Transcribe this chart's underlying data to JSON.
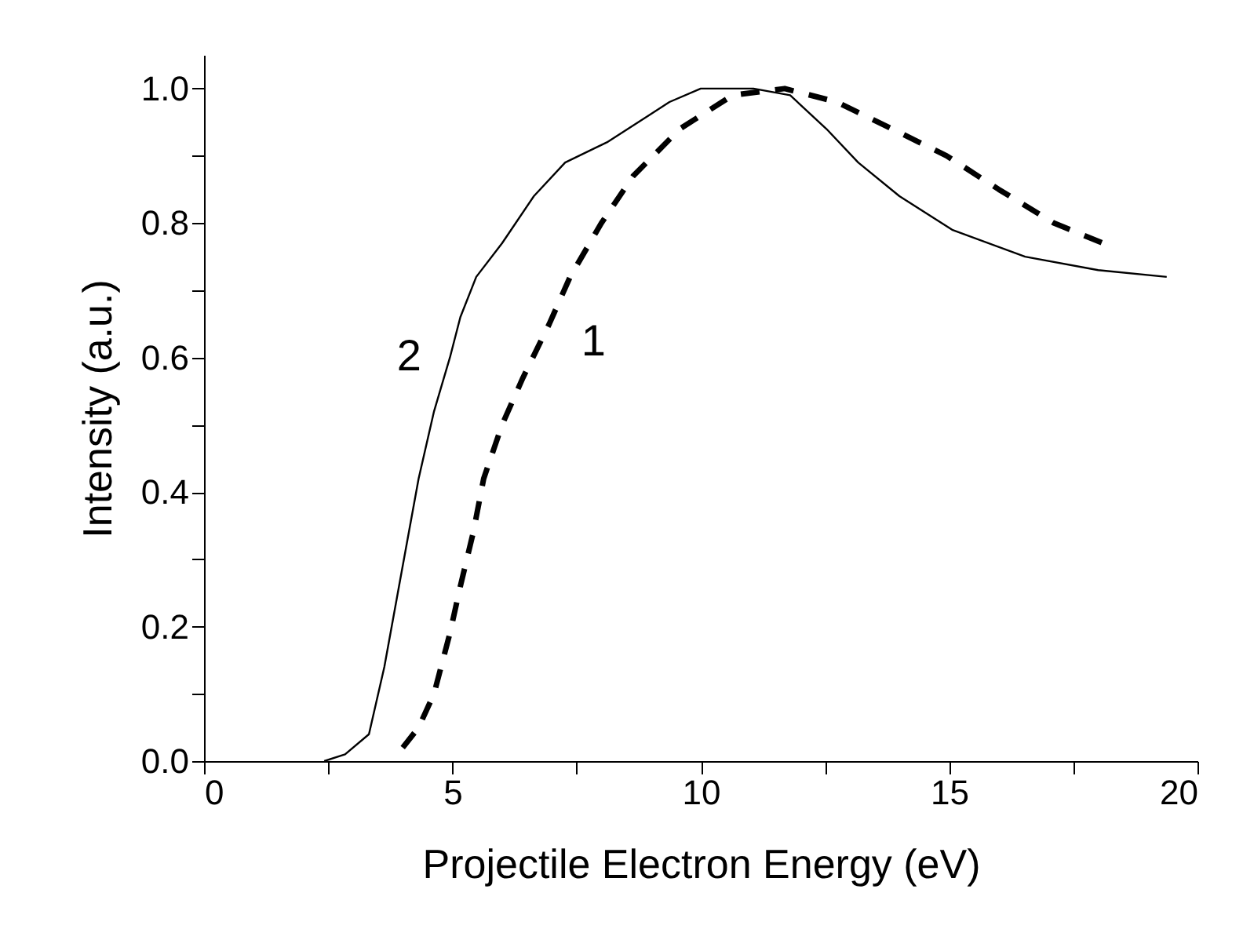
{
  "chart_data": {
    "type": "line",
    "xlabel": "Projectile Electron Energy (eV)",
    "ylabel": "Intensity (a.u.)",
    "xlim": [
      0,
      20
    ],
    "ylim": [
      0,
      1.05
    ],
    "xticks": [
      0,
      {
        "value": 2.5,
        "label": null
      },
      5,
      {
        "value": 7.5,
        "label": null
      },
      10,
      {
        "value": 12.5,
        "label": null
      },
      15,
      {
        "value": 17.5,
        "label": null
      },
      20
    ],
    "yticks": [
      {
        "value": 0,
        "label": "0.0"
      },
      {
        "value": 0.1,
        "label": null
      },
      0.2,
      {
        "value": 0.3,
        "label": null
      },
      0.4,
      {
        "value": 0.5,
        "label": null
      },
      0.6,
      {
        "value": 0.7,
        "label": null
      },
      0.8,
      {
        "value": 0.9,
        "label": null
      },
      {
        "value": 1,
        "label": "1.0"
      }
    ],
    "grid": false,
    "series": [
      {
        "name": "1",
        "color": "#000000",
        "line_style": "dashed",
        "x": [
          4.0,
          4.32,
          4.63,
          4.95,
          5.16,
          5.42,
          5.63,
          6.0,
          6.42,
          6.95,
          7.37,
          8.0,
          8.64,
          9.58,
          10.64,
          11.69,
          12.74,
          13.85,
          14.95,
          16.0,
          17.11,
          18.1
        ],
        "values": [
          0.02,
          0.05,
          0.1,
          0.19,
          0.26,
          0.34,
          0.42,
          0.5,
          0.57,
          0.65,
          0.72,
          0.8,
          0.87,
          0.94,
          0.99,
          1.0,
          0.98,
          0.94,
          0.9,
          0.85,
          0.8,
          0.77
        ]
      },
      {
        "name": "2",
        "color": "#000000",
        "line_style": "solid",
        "x": [
          2.42,
          2.84,
          3.32,
          3.63,
          3.95,
          4.32,
          4.63,
          4.95,
          5.16,
          5.48,
          6.0,
          6.64,
          7.27,
          8.11,
          8.95,
          9.37,
          10.0,
          11.06,
          11.8,
          12.53,
          13.17,
          14.0,
          15.06,
          16.53,
          18.0,
          19.38
        ],
        "values": [
          0.0,
          0.01,
          0.04,
          0.14,
          0.27,
          0.42,
          0.52,
          0.6,
          0.66,
          0.72,
          0.77,
          0.84,
          0.89,
          0.92,
          0.96,
          0.98,
          1.0,
          1.0,
          0.99,
          0.94,
          0.89,
          0.84,
          0.79,
          0.75,
          0.73,
          0.72
        ]
      }
    ]
  }
}
